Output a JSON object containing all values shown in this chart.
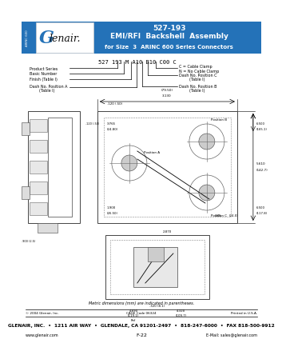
{
  "bg_color": "#ffffff",
  "header_bg": "#2472b8",
  "header_text_color": "#ffffff",
  "header_title": "527-193",
  "header_subtitle": "EMI/RFI  Backshell  Assembly",
  "header_subtitle2": "for Size  3  ARINC 600 Series Connectors",
  "logo_text": "Glenair.",
  "part_number_label": "527 193 M A10 B10 C00 C",
  "footer_line1_left": "© 2004 Glenair, Inc.",
  "footer_line1_mid": "CAGE Code 06324",
  "footer_line1_right": "Printed in U.S.A.",
  "footer_line2": "GLENAIR, INC.  •  1211 AIR WAY  •  GLENDALE, CA 91201-2497  •  818-247-6000  •  FAX 818-500-9912",
  "footer_www": "www.glenair.com",
  "footer_page": "F-22",
  "footer_email": "E-Mail: sales@glenair.com",
  "metric_note": "Metric dimensions (mm) are indicated in parentheses.",
  "sidebar_label1": "ARINC 600",
  "sidebar_label2": "Series"
}
